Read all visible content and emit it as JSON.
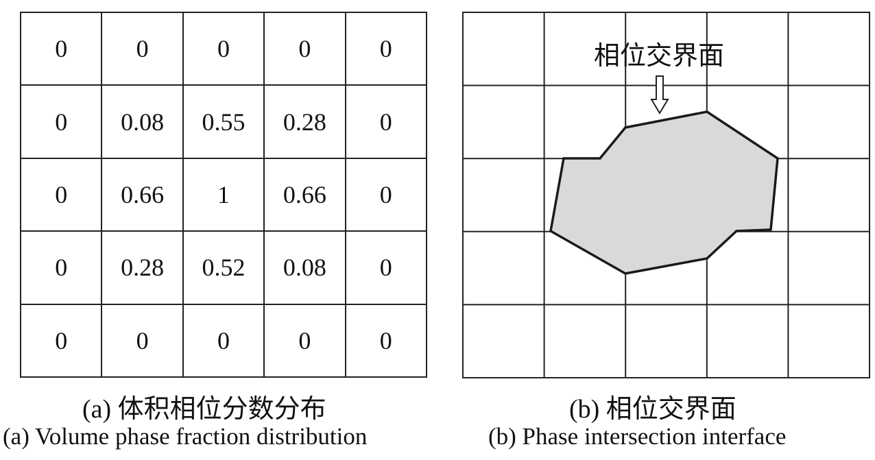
{
  "panel_a": {
    "grid": [
      [
        "0",
        "0",
        "0",
        "0",
        "0"
      ],
      [
        "0",
        "0.08",
        "0.55",
        "0.28",
        "0"
      ],
      [
        "0",
        "0.66",
        "1",
        "0.66",
        "0"
      ],
      [
        "0",
        "0.28",
        "0.52",
        "0.08",
        "0"
      ],
      [
        "0",
        "0",
        "0",
        "0",
        "0"
      ]
    ],
    "caption_cn": "(a) 体积相位分数分布",
    "caption_en": "(a) Volume phase fraction distribution"
  },
  "panel_b": {
    "label": "相位交界面",
    "caption_cn": "(b) 相位交界面",
    "caption_en": "(b) Phase intersection interface",
    "fill_color": "#d9d9d9",
    "line_color": "#1a1a1a"
  }
}
